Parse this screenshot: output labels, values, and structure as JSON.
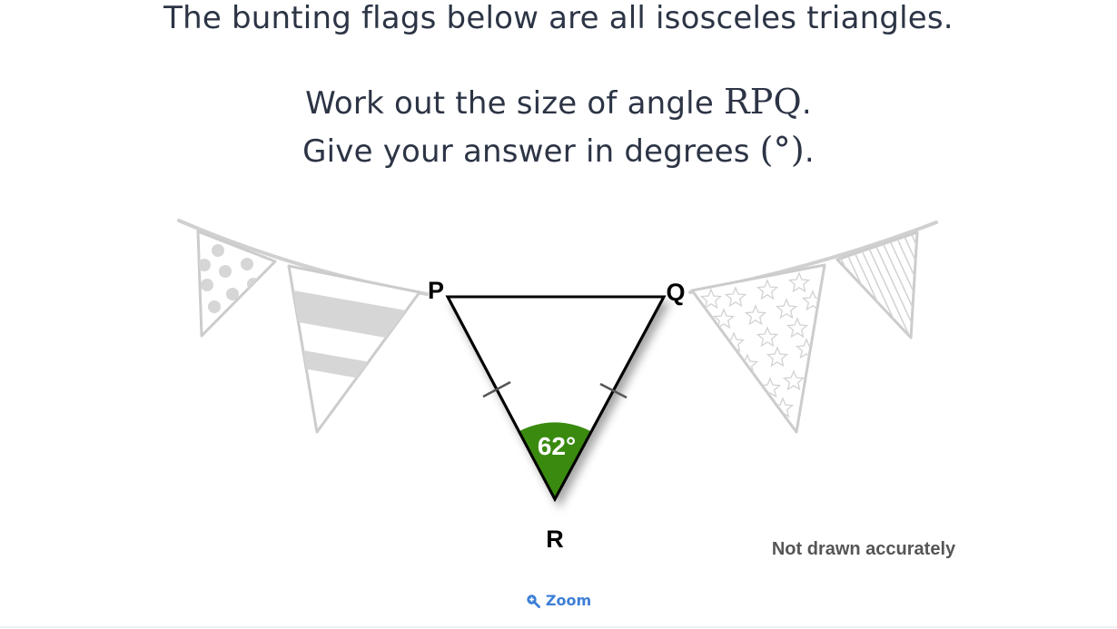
{
  "question": {
    "line1": "The bunting flags below are all isosceles triangles.",
    "line2_text": "Work out the size of angle ",
    "line2_math": "RPQ",
    "line2_end": ".",
    "line3_text": "Give your answer in degrees ",
    "line3_math": "(°)",
    "line3_end": "."
  },
  "diagram": {
    "labels": {
      "p": "P",
      "q": "Q",
      "r": "R"
    },
    "angle_label": "62°",
    "note": "Not drawn accurately",
    "colors": {
      "angle_fill": "#3a8a10",
      "flag_outline": "#cccccc",
      "flag_pattern": "#d6d6d6",
      "triangle_stroke": "#000000"
    }
  },
  "zoom": {
    "label": "Zoom",
    "icon": "zoom-in-icon"
  }
}
